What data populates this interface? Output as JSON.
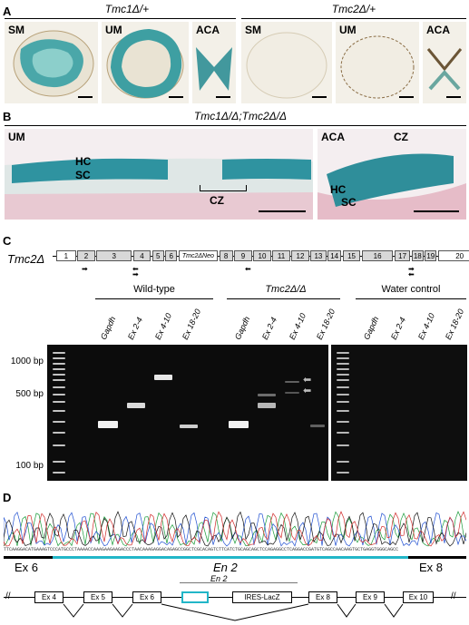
{
  "panels": {
    "A": {
      "label": "A",
      "left_header": "Tmc1Δ/+",
      "right_header": "Tmc2Δ/+",
      "tiles": [
        "SM",
        "UM",
        "ACA",
        "SM",
        "UM",
        "ACA"
      ]
    },
    "B": {
      "label": "B",
      "header": "Tmc1Δ/Δ;Tmc2Δ/Δ",
      "left_tile": "UM",
      "right_tile_a": "ACA",
      "right_tile_b": "CZ",
      "hc": "HC",
      "sc": "SC",
      "cz": "CZ",
      "hc2": "HC",
      "sc2": "SC"
    },
    "C": {
      "label": "C",
      "gene_label": "Tmc2Δ",
      "exons": [
        "1",
        "2",
        "3",
        "4",
        "5",
        "6",
        "Tmc2ΔNeo",
        "8",
        "9",
        "10",
        "11",
        "12",
        "13",
        "14",
        "15",
        "16",
        "17",
        "18",
        "19",
        "20"
      ],
      "groups": [
        "Wild-type",
        "Tmc2Δ/Δ",
        "Water control"
      ],
      "lanes": [
        "Gapdh",
        "Ex 2-4",
        "Ex 4-10",
        "Ex 18-20"
      ],
      "markers": [
        "1000 bp",
        "500 bp",
        "100 bp"
      ]
    },
    "D": {
      "label": "D",
      "seq": "TTCAAGGACATGAAAGTCCCATGCCCTAAAACCAAAGAAGAAGACCCTAACAAAGAGGACAGAGCCGGCTCGCACAGTCTTCATCTGCAGCAGCTCCAGAGGCCTCAGGACCGATGTCAGCCAACAAGTGCTGAGGTGGGCAGCC",
      "seg_left": "Ex 6",
      "seg_mid": "En 2",
      "seg_right": "Ex 8",
      "box_title": "En 2",
      "construct": [
        "Ex 4",
        "Ex 5",
        "Ex 6",
        "IRES-LacZ",
        "Ex 8",
        "Ex 9",
        "Ex 10"
      ]
    }
  }
}
